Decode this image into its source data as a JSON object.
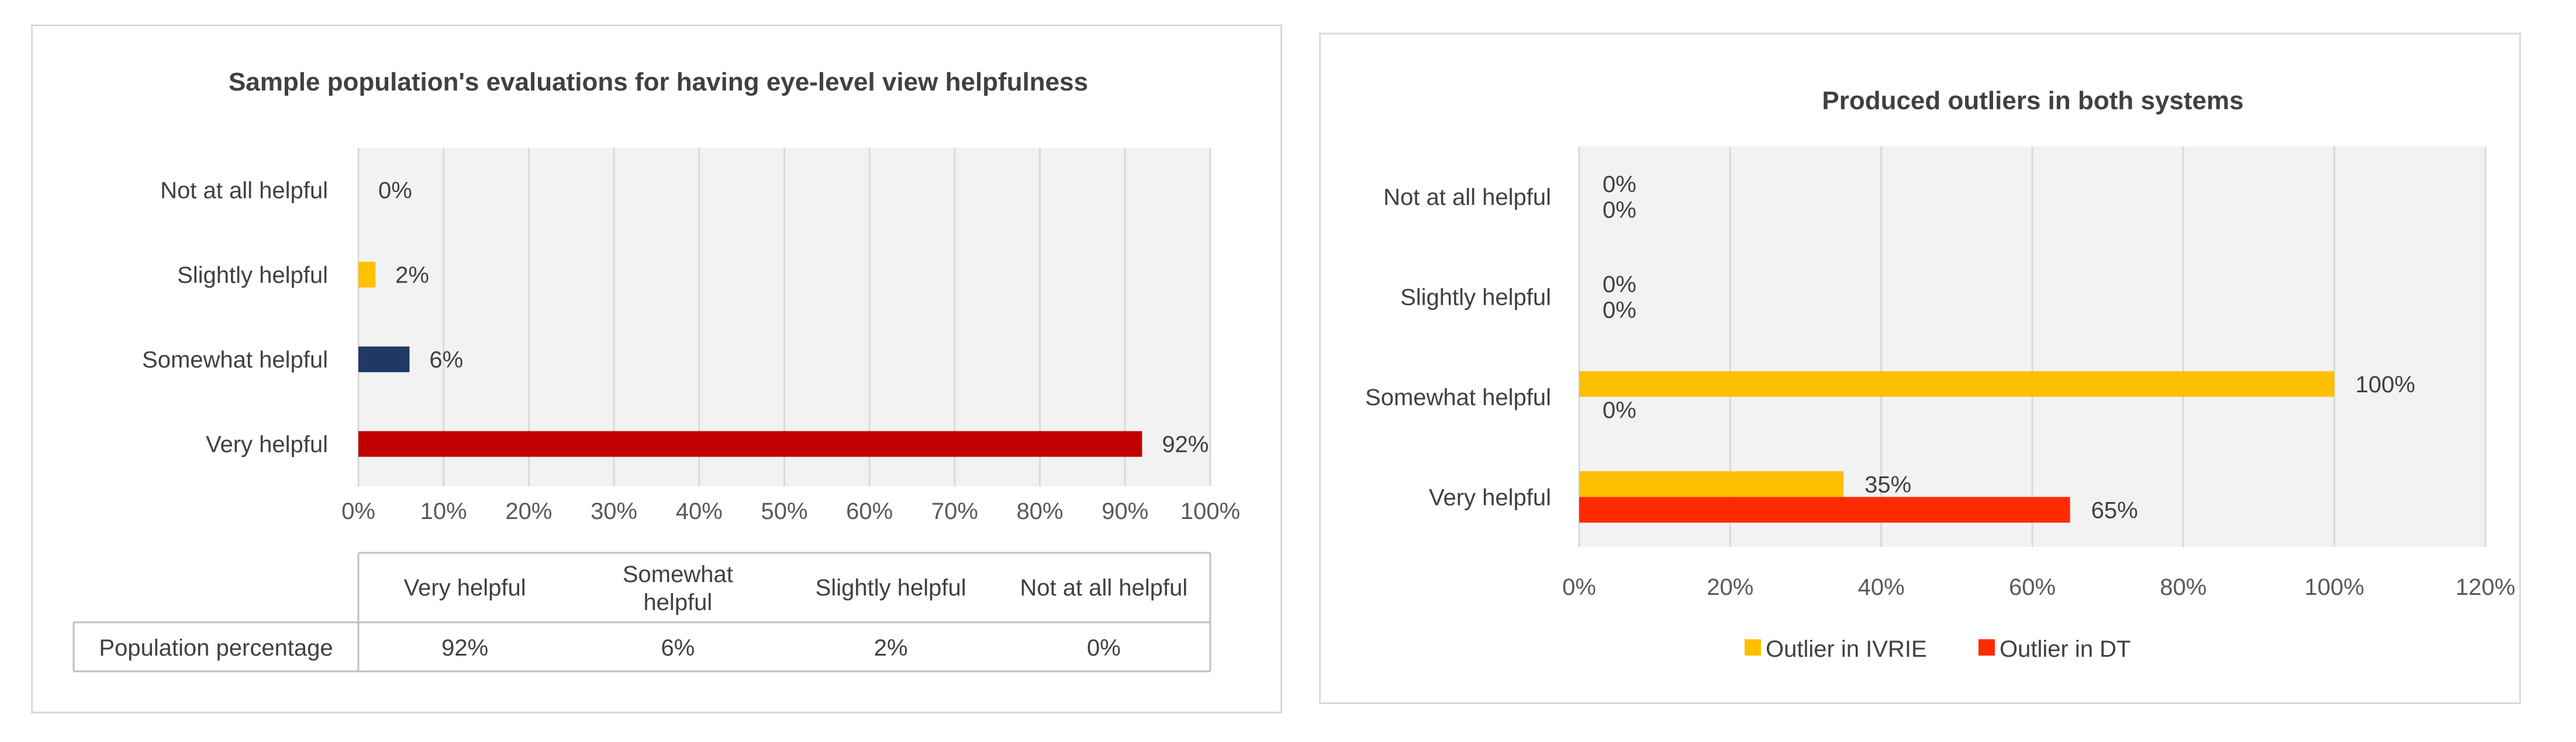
{
  "chart_data": [
    {
      "type": "bar",
      "orientation": "horizontal",
      "title": "Sample population's evaluations for having eye-level view helpfulness",
      "categories": [
        "Not at all helpful",
        "Slightly helpful",
        "Somewhat helpful",
        "Very helpful"
      ],
      "values": [
        0,
        2,
        6,
        92
      ],
      "value_labels": [
        "0%",
        "2%",
        "6%",
        "92%"
      ],
      "bar_colors": [
        "#ffc000",
        "#ffc000",
        "#1f3864",
        "#c00000"
      ],
      "xlim": [
        0,
        100
      ],
      "xticks": [
        "0%",
        "10%",
        "20%",
        "30%",
        "40%",
        "50%",
        "60%",
        "70%",
        "80%",
        "90%",
        "100%"
      ],
      "grid": true,
      "data_table": {
        "headers": [
          "Very helpful",
          "Somewhat\nhelpful",
          "Slightly helpful",
          "Not at all helpful"
        ],
        "row_label": "Population percentage",
        "values": [
          "92%",
          "6%",
          "2%",
          "0%"
        ]
      }
    },
    {
      "type": "bar",
      "orientation": "horizontal",
      "title": "Produced outliers in both systems",
      "categories": [
        "Not at all helpful",
        "Slightly helpful",
        "Somewhat helpful",
        "Very helpful"
      ],
      "series": [
        {
          "name": "Outlier in IVRIE",
          "color": "#ffc000",
          "values": [
            0,
            0,
            100,
            35
          ],
          "value_labels": [
            "0%",
            "0%",
            "100%",
            "35%"
          ]
        },
        {
          "name": "Outlier in DT",
          "color": "#ff2a00",
          "values": [
            0,
            0,
            0,
            65
          ],
          "value_labels": [
            "0%",
            "0%",
            "0%",
            "65%"
          ]
        }
      ],
      "xlim": [
        0,
        120
      ],
      "xticks": [
        "0%",
        "20%",
        "40%",
        "60%",
        "80%",
        "100%",
        "120%"
      ],
      "grid": true,
      "legend": "bottom"
    }
  ]
}
